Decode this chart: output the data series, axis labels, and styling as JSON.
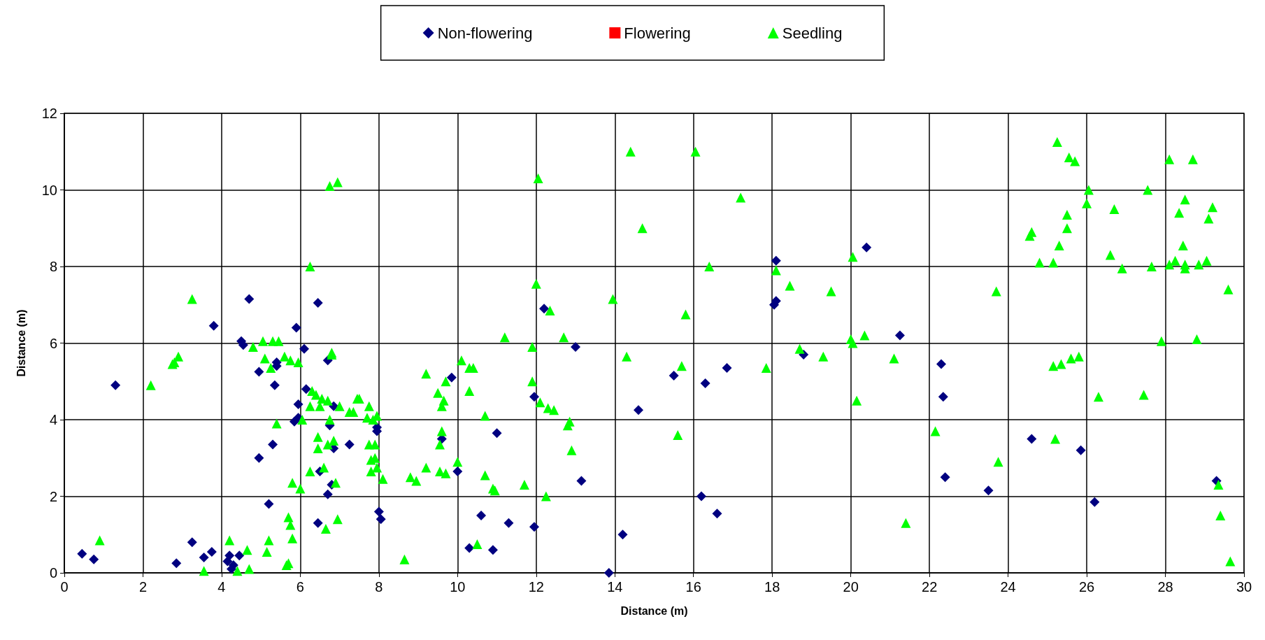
{
  "chart_data": {
    "type": "scatter",
    "xlabel": "Distance (m)",
    "ylabel": "Distance (m)",
    "xlim": [
      0,
      30
    ],
    "xticks": [
      0,
      2,
      4,
      6,
      8,
      10,
      12,
      14,
      16,
      18,
      20,
      22,
      24,
      26,
      28,
      30
    ],
    "ylim": [
      0,
      12
    ],
    "yticks": [
      0,
      2,
      4,
      6,
      8,
      10,
      12
    ],
    "grid": true,
    "legend": "top",
    "series": [
      {
        "name": "Non-flowering",
        "color": "#000080",
        "marker": "diamond",
        "x": [
          0.45,
          0.75,
          1.3,
          2.85,
          3.25,
          3.55,
          3.75,
          3.8,
          4.15,
          4.2,
          4.25,
          4.3,
          4.45,
          4.5,
          4.55,
          4.7,
          4.95,
          4.95,
          5.2,
          5.3,
          5.35,
          5.4,
          5.4,
          5.9,
          5.85,
          5.95,
          5.95,
          6.1,
          6.15,
          6.45,
          6.45,
          6.5,
          6.7,
          6.7,
          6.75,
          6.8,
          6.85,
          6.85,
          7.25,
          7.95,
          7.95,
          8.0,
          8.05,
          9.6,
          9.85,
          10.0,
          10.3,
          10.6,
          10.9,
          11.0,
          11.3,
          11.95,
          11.95,
          12.2,
          13.0,
          13.15,
          13.85,
          14.2,
          14.6,
          15.5,
          16.2,
          16.3,
          16.6,
          16.85,
          18.05,
          18.1,
          18.1,
          18.8,
          20.4,
          21.25,
          22.3,
          22.35,
          22.4,
          23.5,
          24.6,
          25.85,
          26.2,
          29.3
        ],
        "values": [
          0.5,
          0.35,
          4.9,
          0.25,
          0.8,
          0.4,
          0.55,
          6.45,
          0.3,
          0.45,
          0.1,
          0.2,
          0.45,
          6.05,
          5.95,
          7.15,
          5.25,
          3.0,
          1.8,
          3.35,
          4.9,
          5.4,
          5.5,
          6.4,
          3.95,
          4.05,
          4.4,
          5.85,
          4.8,
          7.05,
          1.3,
          2.65,
          2.05,
          5.55,
          3.85,
          2.3,
          3.25,
          4.35,
          3.35,
          3.7,
          3.8,
          1.6,
          1.4,
          3.5,
          5.1,
          2.65,
          0.65,
          1.5,
          0.6,
          3.65,
          1.3,
          1.2,
          4.6,
          6.9,
          5.9,
          2.4,
          0.0,
          1.0,
          4.25,
          5.15,
          2.0,
          4.95,
          1.55,
          5.35,
          7.0,
          7.1,
          8.15,
          5.7,
          8.5,
          6.2,
          5.45,
          4.6,
          2.5,
          2.15,
          3.5,
          3.2,
          1.85,
          2.4
        ]
      },
      {
        "name": "Flowering",
        "color": "#ff0000",
        "marker": "square"
      },
      {
        "name": "Seedling",
        "color": "#00ff00",
        "marker": "triangle",
        "x": [
          0.9,
          2.2,
          2.8,
          2.75,
          2.9,
          3.25,
          3.55,
          4.2,
          4.4,
          4.7,
          4.65,
          4.8,
          5.05,
          5.1,
          5.15,
          5.2,
          5.25,
          5.3,
          5.45,
          5.4,
          5.6,
          5.65,
          5.7,
          5.7,
          5.75,
          5.8,
          5.8,
          5.75,
          5.95,
          6.0,
          6.05,
          6.25,
          6.25,
          6.25,
          6.3,
          6.4,
          6.45,
          6.45,
          6.5,
          6.55,
          6.6,
          6.65,
          6.7,
          6.7,
          6.75,
          6.75,
          6.8,
          6.8,
          6.85,
          6.9,
          6.95,
          6.95,
          7.0,
          7.25,
          7.35,
          7.45,
          7.5,
          7.7,
          7.75,
          7.75,
          7.8,
          7.8,
          7.85,
          7.9,
          7.9,
          7.95,
          7.95,
          8.1,
          8.65,
          8.8,
          8.95,
          9.2,
          9.2,
          9.5,
          9.55,
          9.55,
          9.6,
          9.6,
          9.65,
          9.7,
          9.7,
          10.0,
          10.1,
          10.3,
          10.3,
          10.4,
          10.5,
          10.7,
          10.7,
          10.9,
          10.95,
          11.7,
          11.2,
          11.9,
          11.9,
          12.0,
          12.05,
          12.1,
          12.25,
          12.3,
          12.35,
          12.45,
          12.7,
          12.8,
          12.85,
          12.9,
          13.95,
          14.3,
          14.4,
          14.7,
          15.6,
          15.7,
          15.8,
          16.05,
          16.4,
          17.2,
          17.85,
          18.1,
          18.45,
          18.7,
          19.3,
          19.5,
          20.0,
          20.05,
          20.05,
          20.15,
          20.35,
          21.1,
          21.4,
          22.15,
          23.7,
          23.75,
          24.55,
          24.6,
          24.8,
          25.15,
          25.15,
          25.2,
          25.25,
          25.3,
          25.35,
          25.5,
          25.5,
          25.55,
          25.6,
          25.7,
          25.8,
          26.0,
          26.05,
          26.3,
          26.6,
          26.7,
          26.9,
          27.45,
          27.55,
          27.65,
          27.9,
          28.1,
          28.1,
          28.25,
          28.35,
          28.45,
          28.5,
          28.5,
          28.5,
          28.7,
          28.8,
          28.85,
          29.05,
          29.1,
          29.2,
          29.35,
          29.4,
          29.6,
          29.65
        ],
        "values": [
          0.85,
          4.9,
          5.5,
          5.45,
          5.65,
          7.15,
          0.05,
          0.85,
          0.05,
          0.1,
          0.6,
          5.9,
          6.05,
          5.6,
          0.55,
          0.85,
          5.35,
          6.05,
          6.05,
          3.9,
          5.65,
          0.2,
          0.25,
          1.45,
          1.25,
          0.9,
          2.35,
          5.55,
          5.5,
          2.2,
          4.0,
          8.0,
          2.65,
          4.35,
          4.75,
          4.65,
          3.55,
          3.25,
          4.35,
          4.55,
          2.75,
          1.15,
          4.5,
          3.35,
          4.0,
          10.1,
          5.75,
          5.7,
          3.45,
          2.35,
          1.4,
          10.2,
          4.35,
          4.2,
          4.2,
          4.55,
          4.55,
          4.05,
          4.35,
          3.35,
          2.95,
          2.65,
          4.0,
          3.0,
          3.35,
          4.1,
          2.75,
          2.45,
          0.35,
          2.5,
          2.4,
          2.75,
          5.2,
          4.7,
          3.35,
          2.65,
          3.7,
          4.35,
          4.5,
          2.6,
          5.0,
          2.9,
          5.55,
          4.75,
          5.35,
          5.35,
          0.75,
          4.1,
          2.55,
          2.2,
          2.15,
          2.3,
          6.15,
          5.9,
          5.0,
          7.55,
          10.3,
          4.45,
          2.0,
          4.3,
          6.85,
          4.25,
          6.15,
          3.85,
          3.95,
          3.2,
          7.15,
          5.65,
          11.0,
          9.0,
          3.6,
          5.4,
          6.75,
          11.0,
          8.0,
          9.8,
          5.35,
          7.9,
          7.5,
          5.85,
          5.65,
          7.35,
          6.1,
          8.25,
          6.0,
          4.5,
          6.2,
          5.6,
          1.3,
          3.7,
          7.35,
          2.9,
          8.8,
          8.9,
          8.1,
          8.1,
          5.4,
          3.5,
          11.25,
          8.55,
          5.45,
          9.0,
          9.35,
          10.85,
          5.6,
          10.75,
          5.65,
          9.65,
          10.0,
          4.6,
          8.3,
          9.5,
          7.95,
          4.65,
          10.0,
          8.0,
          6.05,
          10.8,
          8.05,
          8.15,
          9.4,
          8.55,
          9.75,
          7.95,
          8.05,
          10.8,
          6.1,
          8.05,
          8.15,
          9.25,
          9.55,
          2.3,
          1.5,
          7.4,
          0.3
        ]
      }
    ]
  }
}
